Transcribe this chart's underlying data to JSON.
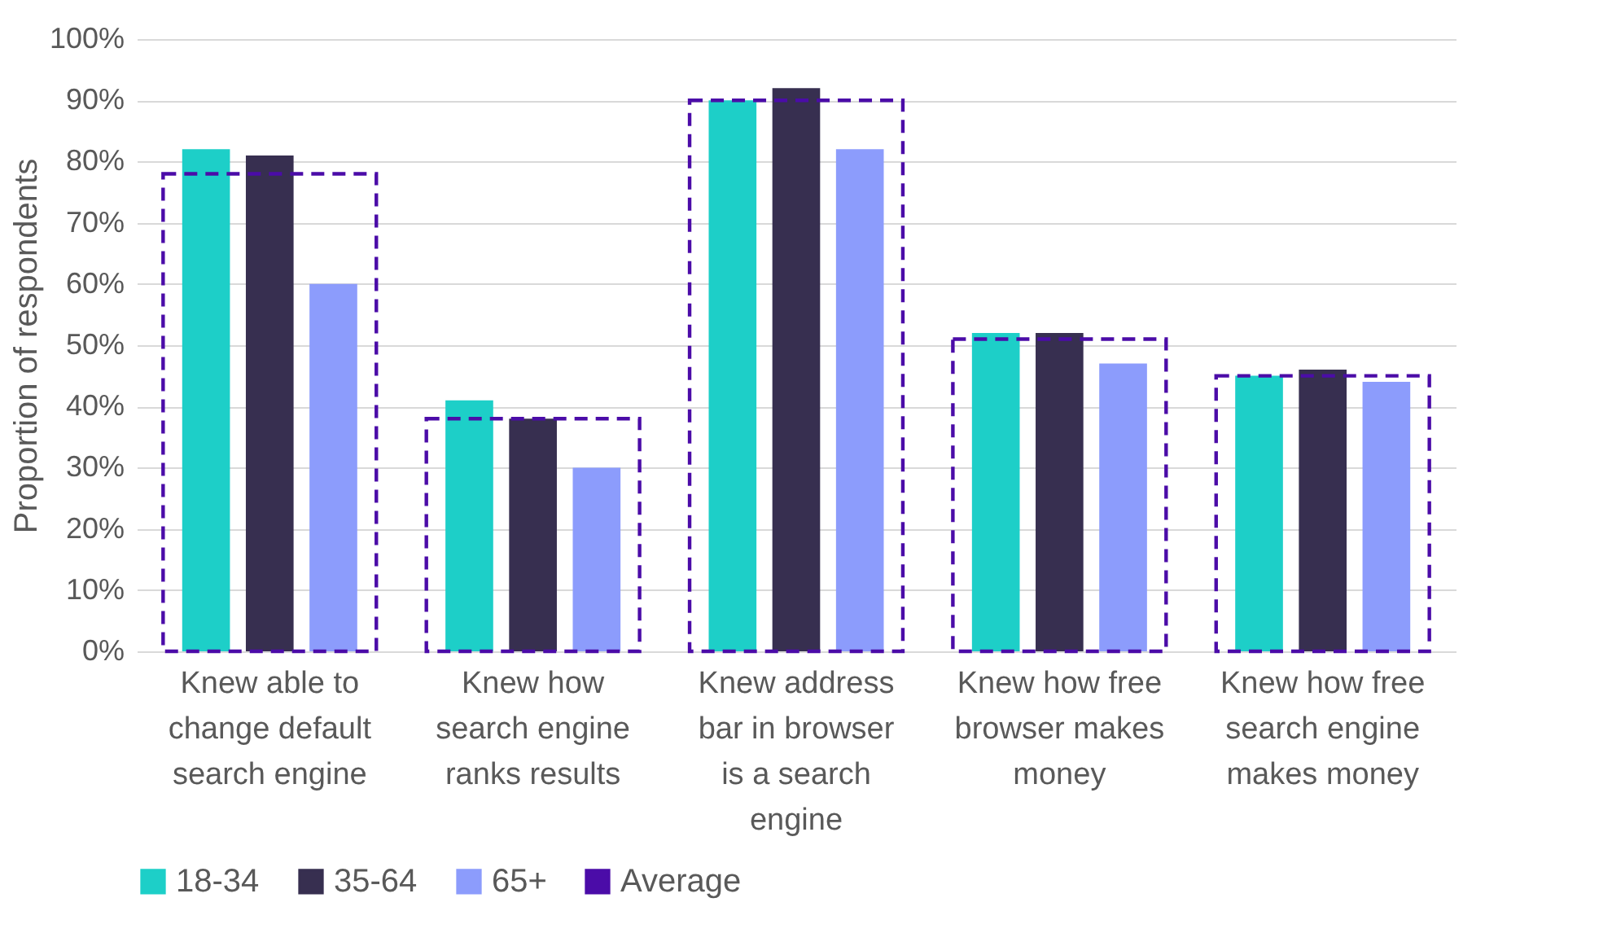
{
  "chart_data": {
    "type": "bar",
    "ylabel": "Proportion of respondents",
    "categories": [
      "Knew able to change default search engine",
      "Knew how search engine ranks results",
      "Knew address bar in browser is a search engine",
      "Knew how free browser makes money",
      "Knew how free search engine makes money"
    ],
    "series": [
      {
        "name": "18-34",
        "color": "#1dcfc8",
        "values": [
          82,
          41,
          90,
          52,
          45
        ]
      },
      {
        "name": "35-64",
        "color": "#372f50",
        "values": [
          81,
          38,
          92,
          52,
          46
        ]
      },
      {
        "name": "65+",
        "color": "#8c9cfc",
        "values": [
          60,
          30,
          82,
          47,
          44
        ]
      },
      {
        "name": "Average",
        "color": "#4b0ca8",
        "line_style": "dashed",
        "values": [
          78,
          38,
          90,
          51,
          45
        ]
      }
    ],
    "ylim": [
      0,
      100
    ],
    "yticks": [
      {
        "value": 0,
        "label": "0%"
      },
      {
        "value": 10,
        "label": "10%"
      },
      {
        "value": 20,
        "label": "20%"
      },
      {
        "value": 30,
        "label": "30%"
      },
      {
        "value": 40,
        "label": "40%"
      },
      {
        "value": 50,
        "label": "50%"
      },
      {
        "value": 60,
        "label": "60%"
      },
      {
        "value": 70,
        "label": "70%"
      },
      {
        "value": 80,
        "label": "80%"
      },
      {
        "value": 90,
        "label": "90%"
      },
      {
        "value": 100,
        "label": "100%"
      }
    ],
    "grid": "y",
    "legend": "bottom"
  }
}
